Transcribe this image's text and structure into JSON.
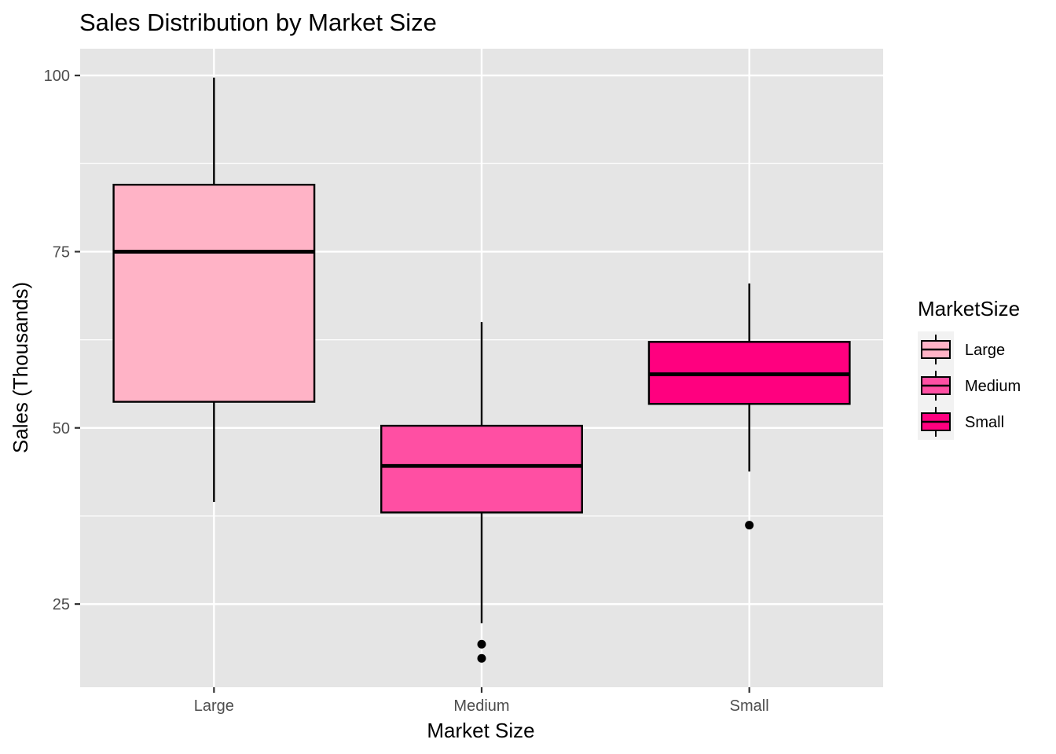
{
  "chart_data": {
    "type": "boxplot",
    "title": "Sales Distribution by Market Size",
    "xlabel": "Market Size",
    "ylabel": "Sales (Thousands)",
    "ylim": [
      13.2,
      103.8
    ],
    "y_ticks": [
      25,
      50,
      75,
      100
    ],
    "grid": true,
    "legend": {
      "title": "MarketSize",
      "placement": "right"
    },
    "categories": [
      "Large",
      "Medium",
      "Small"
    ],
    "colors": {
      "Large": "#ffb3c6",
      "Medium": "#ff4fa3",
      "Small": "#ff007f"
    },
    "boxes": [
      {
        "category": "Large",
        "whisker_low": 39.5,
        "q1": 53.7,
        "median": 75.0,
        "q3": 84.5,
        "whisker_high": 99.7,
        "outliers": []
      },
      {
        "category": "Medium",
        "whisker_low": 22.3,
        "q1": 38.0,
        "median": 44.6,
        "q3": 50.3,
        "whisker_high": 65.0,
        "outliers": [
          19.3,
          17.3
        ]
      },
      {
        "category": "Small",
        "whisker_low": 43.8,
        "q1": 53.4,
        "median": 57.6,
        "q3": 62.2,
        "whisker_high": 70.5,
        "outliers": [
          36.2
        ]
      }
    ]
  }
}
